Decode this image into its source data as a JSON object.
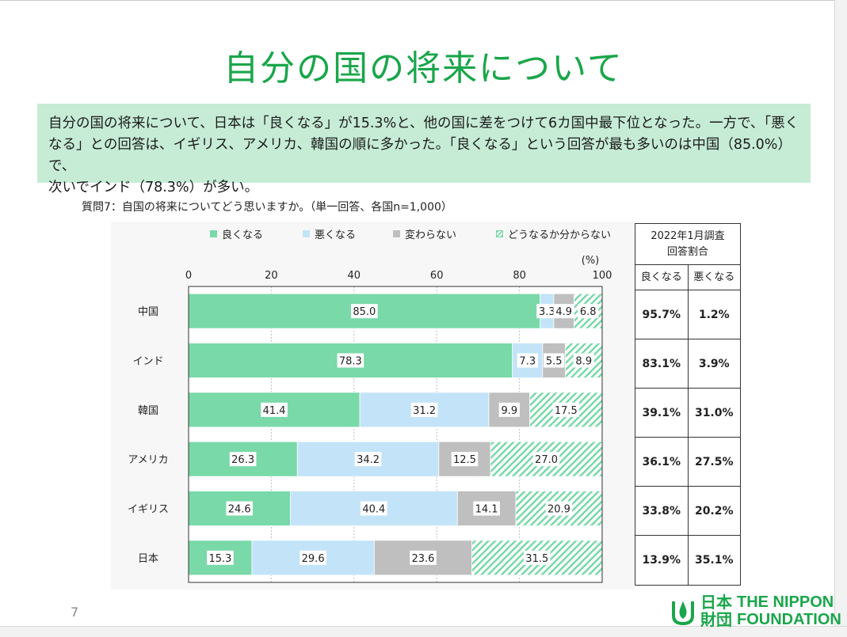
{
  "slide": {
    "title": "自分の国の将来について",
    "summary_line1": "自分の国の将来について、日本は「良くなる」が15.3%と、他の国に差をつけて6カ国中最下位となった。一方で、「悪く",
    "summary_line2": "なる」との回答は、イギリス、アメリカ、韓国の順に多かった。「良くなる」という回答が最も多いのは中国（85.0%）で、",
    "summary_line3": "次いでインド（78.3%）が多い。",
    "question": "質問7：自国の将来についてどう思いますか。（単一回答、各国n=1,000）",
    "page_number": "7"
  },
  "colors": {
    "good": "#79d9a8",
    "bad": "#c3e4f8",
    "same": "#bfbfbf",
    "unknown_stripe": "#79d9a8",
    "title": "#1aa64a",
    "summary_bg": "#c6ecd6"
  },
  "legend": {
    "good": "良くなる",
    "bad": "悪くなる",
    "same": "変わらない",
    "unknown": "どうなるか分からない"
  },
  "chart_data": {
    "type": "bar",
    "orientation": "horizontal",
    "stacked": true,
    "unit_label": "(%)",
    "xlim": [
      0,
      100
    ],
    "xticks": [
      0,
      20,
      40,
      60,
      80,
      100
    ],
    "categories": [
      "中国",
      "インド",
      "韓国",
      "アメリカ",
      "イギリス",
      "日本"
    ],
    "series": [
      {
        "name": "良くなる",
        "values": [
          85.0,
          78.3,
          41.4,
          26.3,
          24.6,
          15.3
        ]
      },
      {
        "name": "悪くなる",
        "values": [
          3.3,
          7.3,
          31.2,
          34.2,
          40.4,
          29.6
        ]
      },
      {
        "name": "変わらない",
        "values": [
          4.9,
          5.5,
          9.9,
          12.5,
          14.1,
          23.6
        ]
      },
      {
        "name": "どうなるか分からない",
        "values": [
          6.8,
          8.9,
          17.5,
          27.0,
          20.9,
          31.5
        ]
      }
    ],
    "data_labels": [
      [
        "85.0",
        "3.3",
        "4.9",
        "6.8"
      ],
      [
        "78.3",
        "7.3",
        "5.5",
        "8.9"
      ],
      [
        "41.4",
        "31.2",
        "9.9",
        "17.5"
      ],
      [
        "26.3",
        "34.2",
        "12.5",
        "27.0"
      ],
      [
        "24.6",
        "40.4",
        "14.1",
        "20.9"
      ],
      [
        "15.3",
        "29.6",
        "23.6",
        "31.5"
      ]
    ]
  },
  "comparison_table": {
    "header_line1": "2022年1月調査",
    "header_line2": "回答割合",
    "col_good": "良くなる",
    "col_bad": "悪くなる",
    "rows": [
      {
        "good": "95.7%",
        "bad": "1.2%"
      },
      {
        "good": "83.1%",
        "bad": "3.9%"
      },
      {
        "good": "39.1%",
        "bad": "31.0%"
      },
      {
        "good": "36.1%",
        "bad": "27.5%"
      },
      {
        "good": "33.8%",
        "bad": "20.2%"
      },
      {
        "good": "13.9%",
        "bad": "35.1%"
      }
    ]
  },
  "logo": {
    "jp_line1": "日本",
    "jp_line2": "財団",
    "en_line1": "THE NIPPON",
    "en_line2": "FOUNDATION"
  }
}
